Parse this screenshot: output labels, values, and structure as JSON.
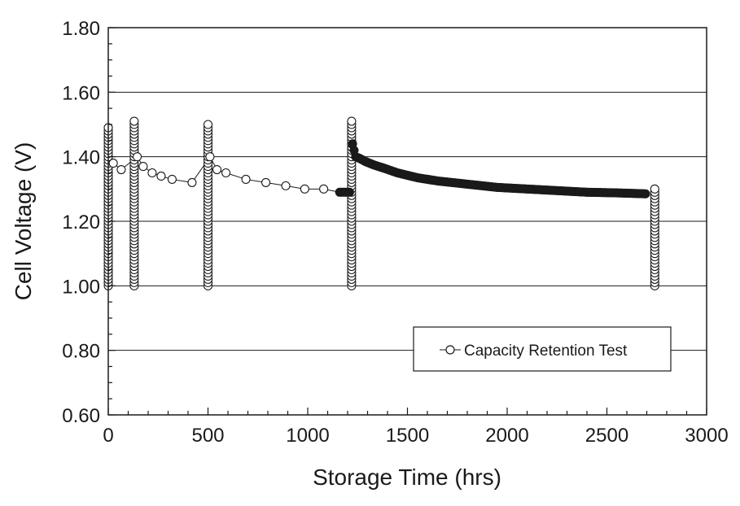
{
  "chart_data": {
    "type": "scatter",
    "xlabel": "Storage Time (hrs)",
    "ylabel": "Cell Voltage (V)",
    "xlim": [
      0,
      3000
    ],
    "ylim": [
      0.6,
      1.8
    ],
    "x_ticks": [
      0,
      500,
      1000,
      1500,
      2000,
      2500,
      3000
    ],
    "x_tick_labels": [
      "0",
      "500",
      "1000",
      "1500",
      "2000",
      "2500",
      "3000"
    ],
    "y_ticks": [
      0.6,
      0.8,
      1.0,
      1.2,
      1.4,
      1.6,
      1.8
    ],
    "y_tick_labels": [
      "0.60",
      "0.80",
      "1.00",
      "1.20",
      "1.40",
      "1.60",
      "1.80"
    ],
    "grid": "horizontal",
    "legend_position": "bottom-right",
    "series": [
      {
        "name": "Capacity Retention Test",
        "marker": "open-circle",
        "line": true,
        "cycles": [
          {
            "x": 0,
            "y_min": 1.0,
            "y_max": 1.49
          },
          {
            "x": 130,
            "y_min": 1.0,
            "y_max": 1.51
          },
          {
            "x": 500,
            "y_min": 1.0,
            "y_max": 1.5
          },
          {
            "x": 1220,
            "y_min": 1.0,
            "y_max": 1.51
          },
          {
            "x": 2740,
            "y_min": 1.0,
            "y_max": 1.3
          }
        ],
        "storage_points": [
          [
            25,
            1.38
          ],
          [
            65,
            1.36
          ],
          [
            145,
            1.4
          ],
          [
            175,
            1.37
          ],
          [
            220,
            1.35
          ],
          [
            265,
            1.34
          ],
          [
            320,
            1.33
          ],
          [
            420,
            1.32
          ],
          [
            510,
            1.4
          ],
          [
            545,
            1.36
          ],
          [
            590,
            1.35
          ],
          [
            690,
            1.33
          ],
          [
            790,
            1.32
          ],
          [
            890,
            1.31
          ],
          [
            985,
            1.3
          ],
          [
            1080,
            1.3
          ],
          [
            1160,
            1.29
          ],
          [
            1170,
            1.29
          ],
          [
            1180,
            1.29
          ],
          [
            1190,
            1.29
          ],
          [
            1200,
            1.29
          ],
          [
            1210,
            1.29
          ],
          [
            1225,
            1.44
          ],
          [
            1240,
            1.4
          ],
          [
            1260,
            1.395
          ],
          [
            1290,
            1.385
          ],
          [
            1330,
            1.375
          ],
          [
            1380,
            1.365
          ],
          [
            1450,
            1.35
          ],
          [
            1550,
            1.335
          ],
          [
            1650,
            1.325
          ],
          [
            1800,
            1.315
          ],
          [
            1950,
            1.305
          ],
          [
            2100,
            1.3
          ],
          [
            2250,
            1.295
          ],
          [
            2400,
            1.29
          ],
          [
            2550,
            1.288
          ],
          [
            2700,
            1.285
          ]
        ]
      }
    ]
  }
}
